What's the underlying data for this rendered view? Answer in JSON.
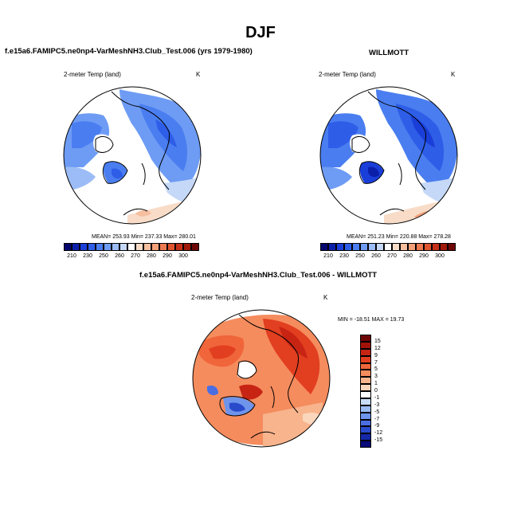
{
  "page": {
    "season_title": "DJF"
  },
  "left_panel": {
    "title": "f.e15a6.FAMIPC5.ne0np4-VarMeshNH3.Club_Test.006 (yrs 1979-1980)",
    "variable": "2-meter Temp (land)",
    "units": "K",
    "stats": "MEAN= 253.93  Min= 237.33  Max= 280.01"
  },
  "right_panel": {
    "title": "WILLMOTT",
    "variable": "2-meter Temp (land)",
    "units": "K",
    "stats": "MEAN= 251.23  Min= 220.88  Max= 278.28"
  },
  "diff_panel": {
    "title": "f.e15a6.FAMIPC5.ne0np4-VarMeshNH3.Club_Test.006 - WILLMOTT",
    "variable": "2-meter Temp (land)",
    "units": "K",
    "stats": "MIN = -18.51  MAX =  19.73"
  },
  "abs_colorbar": {
    "labels": [
      "210",
      "230",
      "250",
      "260",
      "270",
      "280",
      "290",
      "300"
    ],
    "colors": [
      "#06066e",
      "#0c1fa8",
      "#1a3ed8",
      "#2e5ee8",
      "#4a7ef0",
      "#6e9cf4",
      "#9bbcf6",
      "#c5d8f8",
      "#ffffff",
      "#f8dcc8",
      "#f6bfa0",
      "#f3a078",
      "#ec7a50",
      "#de5530",
      "#c43018",
      "#a01808",
      "#6e0606"
    ]
  },
  "diff_colorbar": {
    "labels": [
      "15",
      "12",
      "9",
      "7",
      "5",
      "3",
      "1",
      "0",
      "-1",
      "-3",
      "-5",
      "-7",
      "-9",
      "-12",
      "-15"
    ],
    "colors": [
      "#6e0606",
      "#a21208",
      "#c72414",
      "#e23e20",
      "#f0653a",
      "#f58c5e",
      "#f8b48c",
      "#fad6bc",
      "#ffffff",
      "#c9dcf8",
      "#9cbcf4",
      "#6e94ec",
      "#4a6ee2",
      "#2a4acc",
      "#1428a8",
      "#070a78"
    ]
  }
}
